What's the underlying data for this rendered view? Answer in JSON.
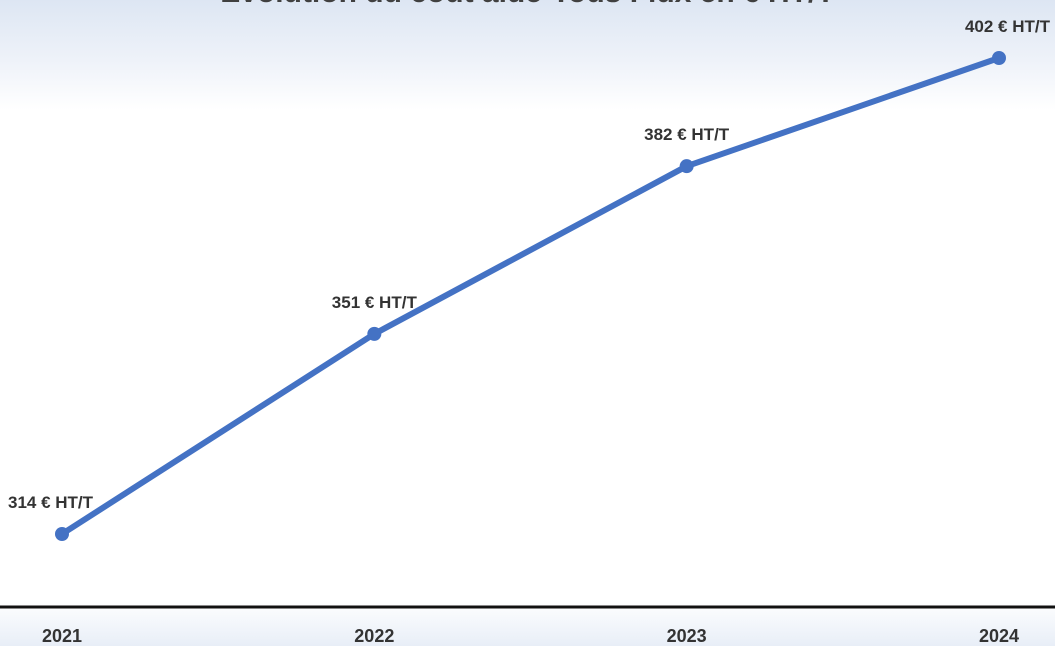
{
  "chart_data": {
    "type": "line",
    "title": "Evolution du coût aide-Tous Flux en € HT/T",
    "xlabel": "",
    "ylabel": "",
    "categories": [
      "2021",
      "2022",
      "2023",
      "2024"
    ],
    "series": [
      {
        "values": [
          314,
          351,
          382,
          402
        ],
        "labels": [
          "314 € HT/T",
          "351 € HT/T",
          "382 € HT/T",
          "402 € HT/T"
        ],
        "color": "#4472C4"
      }
    ],
    "ylim": [
      300,
      410
    ],
    "grid": false,
    "legend": "none"
  }
}
